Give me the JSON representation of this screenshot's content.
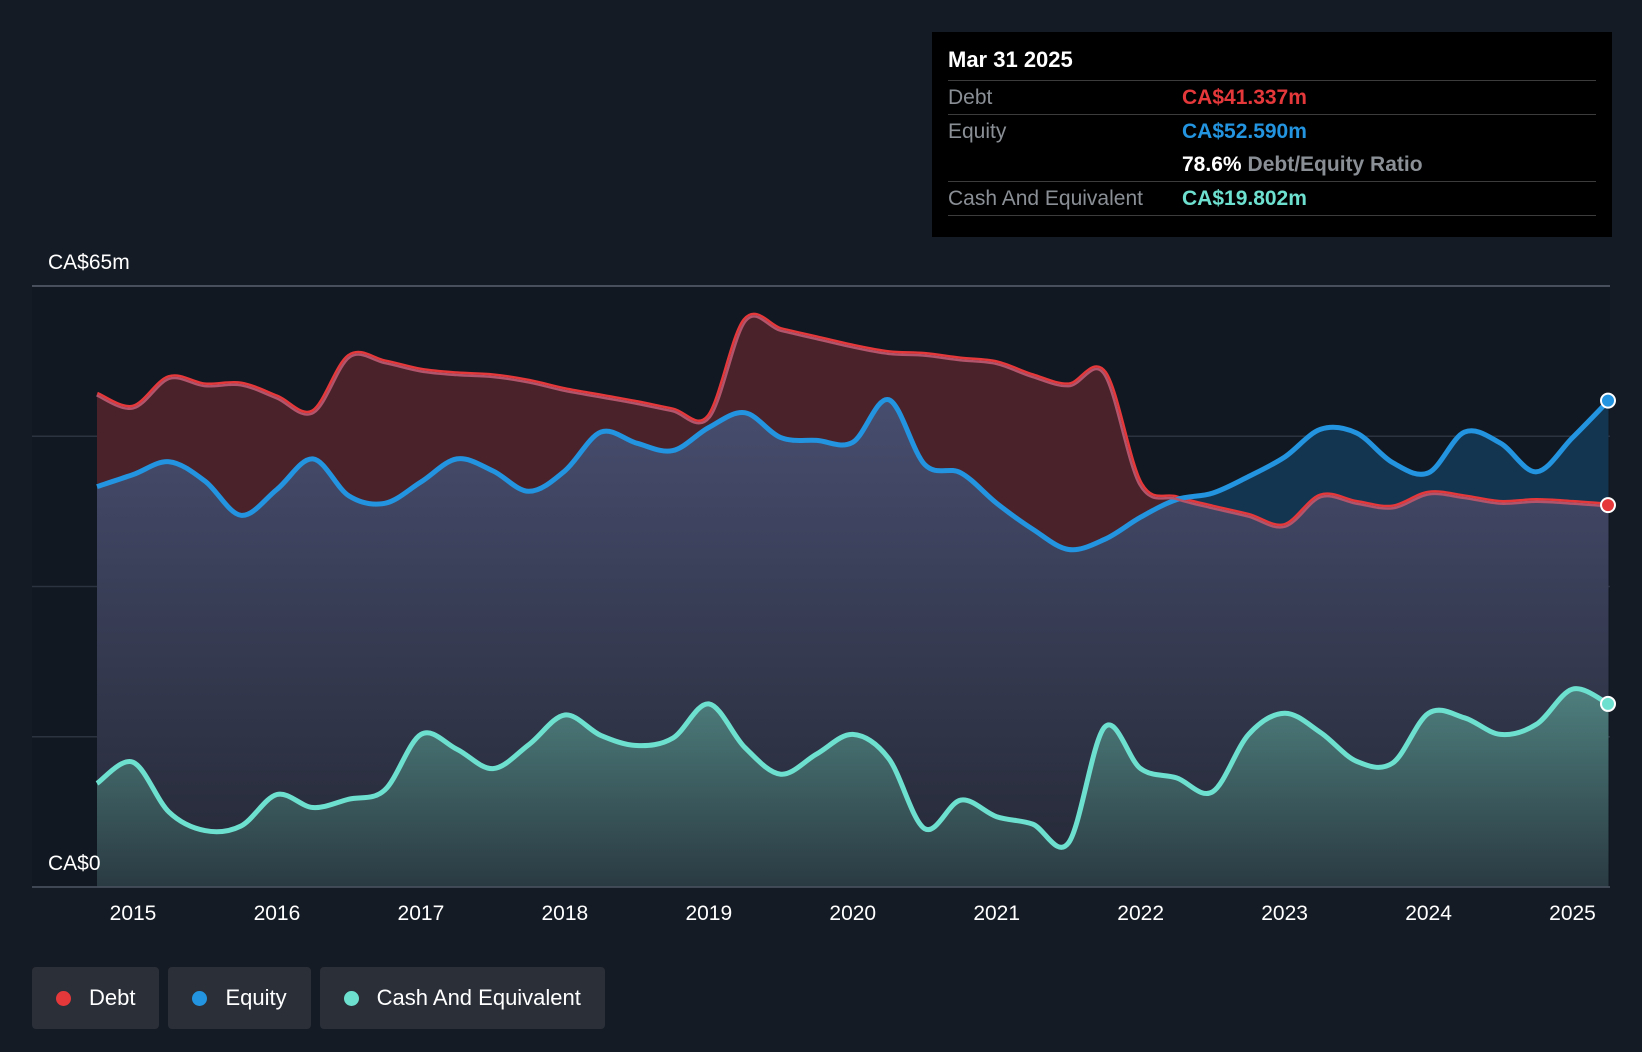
{
  "tooltip": {
    "date": "Mar 31 2025",
    "debt_label": "Debt",
    "debt_value": "CA$41.337m",
    "equity_label": "Equity",
    "equity_value": "CA$52.590m",
    "ratio_value": "78.6%",
    "ratio_label": "Debt/Equity Ratio",
    "cash_label": "Cash And Equivalent",
    "cash_value": "CA$19.802m"
  },
  "legend": [
    {
      "label": "Debt",
      "color": "#e5383b"
    },
    {
      "label": "Equity",
      "color": "#2394df"
    },
    {
      "label": "Cash And Equivalent",
      "color": "#6ee0cf"
    }
  ],
  "chart_data": {
    "type": "area",
    "ylim": [
      0,
      65
    ],
    "y_tick_labels": [
      "CA$0",
      "CA$65m"
    ],
    "x_ticks": [
      2015,
      2016,
      2017,
      2018,
      2019,
      2020,
      2021,
      2022,
      2023,
      2024,
      2025
    ],
    "grid": true,
    "colors": {
      "Debt": "#e5383b",
      "Equity": "#2394df",
      "Cash And Equivalent": "#6ee0cf"
    },
    "series": [
      {
        "name": "Debt",
        "points": [
          [
            2014.75,
            53.3
          ],
          [
            2015.0,
            51.9
          ],
          [
            2015.25,
            55.1
          ],
          [
            2015.5,
            54.3
          ],
          [
            2015.75,
            54.4
          ],
          [
            2016.0,
            53.0
          ],
          [
            2016.25,
            51.4
          ],
          [
            2016.5,
            57.4
          ],
          [
            2016.75,
            56.8
          ],
          [
            2017.0,
            55.9
          ],
          [
            2017.25,
            55.5
          ],
          [
            2017.5,
            55.3
          ],
          [
            2017.75,
            54.7
          ],
          [
            2018.0,
            53.8
          ],
          [
            2018.25,
            53.1
          ],
          [
            2018.5,
            52.4
          ],
          [
            2018.75,
            51.6
          ],
          [
            2019.0,
            50.9
          ],
          [
            2019.25,
            61.3
          ],
          [
            2019.5,
            60.3
          ],
          [
            2019.75,
            59.4
          ],
          [
            2020.0,
            58.5
          ],
          [
            2020.25,
            57.8
          ],
          [
            2020.5,
            57.6
          ],
          [
            2020.75,
            57.1
          ],
          [
            2021.0,
            56.7
          ],
          [
            2021.25,
            55.3
          ],
          [
            2021.5,
            54.3
          ],
          [
            2021.75,
            55.6
          ],
          [
            2022.0,
            43.6
          ],
          [
            2022.25,
            42.1
          ],
          [
            2022.5,
            41.1
          ],
          [
            2022.75,
            40.2
          ],
          [
            2023.0,
            39.1
          ],
          [
            2023.25,
            42.3
          ],
          [
            2023.5,
            41.6
          ],
          [
            2023.75,
            41.1
          ],
          [
            2024.0,
            42.6
          ],
          [
            2024.25,
            42.2
          ],
          [
            2024.5,
            41.6
          ],
          [
            2024.75,
            41.8
          ],
          [
            2025.0,
            41.6
          ],
          [
            2025.25,
            41.3
          ]
        ]
      },
      {
        "name": "Equity",
        "points": [
          [
            2014.75,
            43.3
          ],
          [
            2015.0,
            44.6
          ],
          [
            2015.25,
            46.0
          ],
          [
            2015.5,
            43.9
          ],
          [
            2015.75,
            40.2
          ],
          [
            2016.0,
            43.0
          ],
          [
            2016.25,
            46.3
          ],
          [
            2016.5,
            42.3
          ],
          [
            2016.75,
            41.5
          ],
          [
            2017.0,
            43.8
          ],
          [
            2017.25,
            46.3
          ],
          [
            2017.5,
            45.0
          ],
          [
            2017.75,
            42.8
          ],
          [
            2018.0,
            45.0
          ],
          [
            2018.25,
            49.2
          ],
          [
            2018.5,
            48.0
          ],
          [
            2018.75,
            47.2
          ],
          [
            2019.0,
            49.7
          ],
          [
            2019.25,
            51.3
          ],
          [
            2019.5,
            48.6
          ],
          [
            2019.75,
            48.3
          ],
          [
            2020.0,
            48.1
          ],
          [
            2020.25,
            52.7
          ],
          [
            2020.5,
            45.7
          ],
          [
            2020.75,
            44.8
          ],
          [
            2021.0,
            41.5
          ],
          [
            2021.25,
            38.7
          ],
          [
            2021.5,
            36.5
          ],
          [
            2021.75,
            37.6
          ],
          [
            2022.0,
            40.0
          ],
          [
            2022.25,
            41.9
          ],
          [
            2022.5,
            42.6
          ],
          [
            2022.75,
            44.4
          ],
          [
            2023.0,
            46.5
          ],
          [
            2023.25,
            49.5
          ],
          [
            2023.5,
            49.1
          ],
          [
            2023.75,
            45.9
          ],
          [
            2024.0,
            44.8
          ],
          [
            2024.25,
            49.2
          ],
          [
            2024.5,
            48.0
          ],
          [
            2024.75,
            44.9
          ],
          [
            2025.0,
            48.6
          ],
          [
            2025.25,
            52.6
          ]
        ]
      },
      {
        "name": "Cash And Equivalent",
        "points": [
          [
            2014.75,
            11.2
          ],
          [
            2015.0,
            13.5
          ],
          [
            2015.25,
            8.1
          ],
          [
            2015.5,
            6.1
          ],
          [
            2015.75,
            6.6
          ],
          [
            2016.0,
            10.0
          ],
          [
            2016.25,
            8.6
          ],
          [
            2016.5,
            9.5
          ],
          [
            2016.75,
            10.5
          ],
          [
            2017.0,
            16.5
          ],
          [
            2017.25,
            14.9
          ],
          [
            2017.5,
            12.8
          ],
          [
            2017.75,
            15.4
          ],
          [
            2018.0,
            18.6
          ],
          [
            2018.25,
            16.4
          ],
          [
            2018.5,
            15.3
          ],
          [
            2018.75,
            16.1
          ],
          [
            2019.0,
            19.8
          ],
          [
            2019.25,
            15.1
          ],
          [
            2019.5,
            12.2
          ],
          [
            2019.75,
            14.4
          ],
          [
            2020.0,
            16.5
          ],
          [
            2020.25,
            13.9
          ],
          [
            2020.5,
            6.3
          ],
          [
            2020.75,
            9.4
          ],
          [
            2021.0,
            7.6
          ],
          [
            2021.25,
            6.8
          ],
          [
            2021.5,
            4.8
          ],
          [
            2021.75,
            17.3
          ],
          [
            2022.0,
            12.8
          ],
          [
            2022.25,
            11.8
          ],
          [
            2022.5,
            10.3
          ],
          [
            2022.75,
            16.5
          ],
          [
            2023.0,
            18.8
          ],
          [
            2023.25,
            16.7
          ],
          [
            2023.5,
            13.6
          ],
          [
            2023.75,
            13.4
          ],
          [
            2024.0,
            18.8
          ],
          [
            2024.25,
            18.3
          ],
          [
            2024.5,
            16.5
          ],
          [
            2024.75,
            17.6
          ],
          [
            2025.0,
            21.4
          ],
          [
            2025.25,
            19.8
          ]
        ]
      }
    ]
  }
}
